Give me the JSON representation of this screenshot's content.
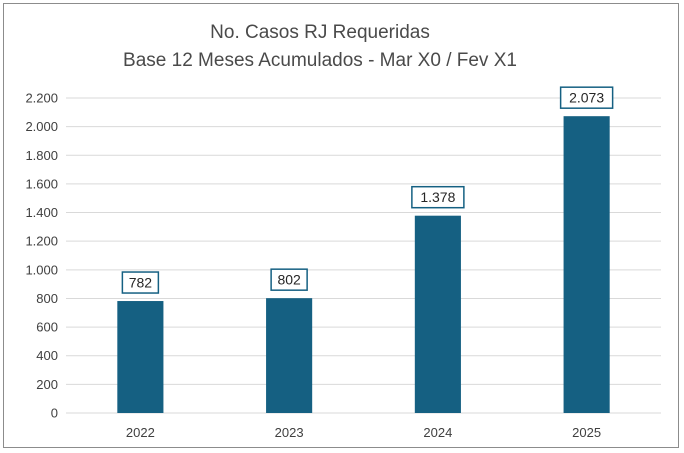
{
  "chart_data": {
    "type": "bar",
    "title_lines": [
      "No. Casos RJ Requeridas",
      "Base 12 Meses Acumulados - Mar X0 / Fev X1"
    ],
    "categories": [
      "2022",
      "2023",
      "2024",
      "2025"
    ],
    "values": [
      782,
      802,
      1378,
      2073
    ],
    "value_labels": [
      "782",
      "802",
      "1.378",
      "2.073"
    ],
    "ylim": [
      0,
      2200
    ],
    "yticks": [
      0,
      200,
      400,
      600,
      800,
      1000,
      1200,
      1400,
      1600,
      1800,
      2000,
      2200
    ],
    "ytick_labels": [
      "0",
      "200",
      "400",
      "600",
      "800",
      "1.000",
      "1.200",
      "1.400",
      "1.600",
      "1.800",
      "2.000",
      "2.200"
    ],
    "xlabel": "",
    "ylabel": "",
    "grid": true,
    "legend": "none",
    "colors": {
      "bar": "#156082",
      "grid": "#d9d9d9",
      "label_border": "#156082",
      "frame": "#8c8c8c"
    }
  }
}
